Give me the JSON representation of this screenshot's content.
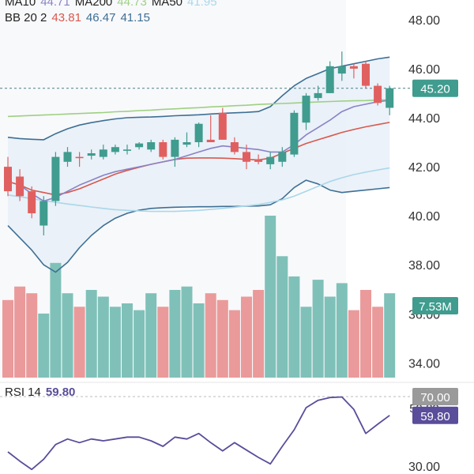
{
  "colors": {
    "up": "#3f9c8e",
    "down": "#e06060",
    "up_vol": "#7fc1b8",
    "down_vol": "#ea9a9a",
    "ma10": "#8a82c6",
    "ma200": "#9ed083",
    "ma50": "#a9d7ea",
    "bb_mid": "#d9584e",
    "bb_up": "#3e6f94",
    "bb_low": "#3e6f94",
    "rsi": "#5a4d9a",
    "price_tag": "#3f9c8e",
    "rsi_tag_70": "#9a9a9a",
    "rsi_tag": "#5a4d9a"
  },
  "legends": {
    "ma": {
      "ma10_label": "MA10",
      "ma10_value": "44.71",
      "ma200_label": "MA200",
      "ma200_value": "44.73",
      "ma50_label": "MA50",
      "ma50_value": "41.95"
    },
    "bb": {
      "label": "BB 20 2",
      "mid_value": "43.81",
      "upper_value": "46.47",
      "lower_value": "41.15"
    },
    "rsi": {
      "label": "RSI 14",
      "value": "59.80"
    }
  },
  "chart_data": [
    {
      "type": "candlestick",
      "title": "Price",
      "ylim": [
        33.4,
        48.8
      ],
      "y_ticks": [
        "48.00",
        "46.00",
        "44.00",
        "42.00",
        "40.00",
        "38.00",
        "36.00",
        "34.00"
      ],
      "y_tick_values": [
        48,
        46,
        44,
        42,
        40,
        38,
        36,
        34
      ],
      "last_price": 45.2,
      "last_price_label": "45.20",
      "volume_label": "7.53M",
      "candles": [
        {
          "o": 42.0,
          "h": 42.4,
          "l": 40.8,
          "c": 41.0
        },
        {
          "o": 41.6,
          "h": 41.9,
          "l": 40.6,
          "c": 40.8
        },
        {
          "o": 41.0,
          "h": 41.2,
          "l": 39.9,
          "c": 40.1
        },
        {
          "o": 39.6,
          "h": 40.8,
          "l": 39.2,
          "c": 40.6
        },
        {
          "o": 40.6,
          "h": 42.6,
          "l": 40.4,
          "c": 42.4
        },
        {
          "o": 42.2,
          "h": 42.8,
          "l": 42.0,
          "c": 42.6
        },
        {
          "o": 42.4,
          "h": 42.6,
          "l": 42.0,
          "c": 42.35
        },
        {
          "o": 42.45,
          "h": 42.7,
          "l": 42.3,
          "c": 42.55
        },
        {
          "o": 42.4,
          "h": 42.9,
          "l": 42.3,
          "c": 42.7
        },
        {
          "o": 42.6,
          "h": 42.9,
          "l": 42.5,
          "c": 42.8
        },
        {
          "o": 42.65,
          "h": 42.9,
          "l": 42.5,
          "c": 42.7
        },
        {
          "o": 42.8,
          "h": 43.0,
          "l": 42.7,
          "c": 42.95
        },
        {
          "o": 42.7,
          "h": 43.1,
          "l": 42.6,
          "c": 43.0
        },
        {
          "o": 43.0,
          "h": 43.1,
          "l": 42.3,
          "c": 42.4
        },
        {
          "o": 42.4,
          "h": 43.2,
          "l": 42.0,
          "c": 43.1
        },
        {
          "o": 42.9,
          "h": 43.4,
          "l": 42.8,
          "c": 43.0
        },
        {
          "o": 43.0,
          "h": 43.8,
          "l": 42.8,
          "c": 43.75
        },
        {
          "o": 43.1,
          "h": 44.1,
          "l": 43.0,
          "c": 43.0
        },
        {
          "o": 44.2,
          "h": 44.4,
          "l": 43.1,
          "c": 43.1
        },
        {
          "o": 43.0,
          "h": 43.2,
          "l": 42.5,
          "c": 42.6
        },
        {
          "o": 42.6,
          "h": 42.9,
          "l": 41.9,
          "c": 42.2
        },
        {
          "o": 42.3,
          "h": 42.5,
          "l": 42.1,
          "c": 42.2
        },
        {
          "o": 42.1,
          "h": 42.6,
          "l": 41.9,
          "c": 42.4
        },
        {
          "o": 42.2,
          "h": 42.8,
          "l": 42.0,
          "c": 42.6
        },
        {
          "o": 42.5,
          "h": 44.3,
          "l": 42.4,
          "c": 44.2
        },
        {
          "o": 43.8,
          "h": 45.0,
          "l": 43.5,
          "c": 44.9
        },
        {
          "o": 44.8,
          "h": 45.3,
          "l": 44.7,
          "c": 45.0
        },
        {
          "o": 45.0,
          "h": 46.3,
          "l": 45.0,
          "c": 46.1
        },
        {
          "o": 45.8,
          "h": 46.7,
          "l": 45.5,
          "c": 46.1
        },
        {
          "o": 46.1,
          "h": 46.2,
          "l": 45.6,
          "c": 46.0
        },
        {
          "o": 46.2,
          "h": 46.3,
          "l": 45.2,
          "c": 45.3
        },
        {
          "o": 45.3,
          "h": 45.4,
          "l": 44.5,
          "c": 44.6
        },
        {
          "o": 44.4,
          "h": 45.3,
          "l": 44.1,
          "c": 45.2
        }
      ],
      "volume": [
        23,
        27,
        25,
        19,
        34,
        25,
        21,
        26,
        24,
        21,
        22,
        20,
        25,
        21,
        26,
        27,
        22,
        25,
        23,
        20,
        24,
        26,
        48,
        36,
        30,
        21,
        29,
        24,
        28,
        20,
        26,
        21,
        25
      ],
      "volume_max": 48,
      "ma10": [
        null,
        41.25,
        40.9,
        40.6,
        40.75,
        41.0,
        41.25,
        41.45,
        41.65,
        41.8,
        41.9,
        42.0,
        42.1,
        42.2,
        42.3,
        42.45,
        42.6,
        42.75,
        42.85,
        42.8,
        42.75,
        42.7,
        42.6,
        42.6,
        42.9,
        43.3,
        43.6,
        43.9,
        44.25,
        44.45,
        44.55,
        44.65,
        44.71
      ],
      "ma200": [
        44.05,
        44.07,
        44.09,
        44.11,
        44.13,
        44.15,
        44.17,
        44.19,
        44.21,
        44.24,
        44.26,
        44.29,
        44.31,
        44.34,
        44.36,
        44.39,
        44.41,
        44.44,
        44.46,
        44.49,
        44.51,
        44.54,
        44.56,
        44.58,
        44.6,
        44.62,
        44.64,
        44.66,
        44.68,
        44.69,
        44.7,
        44.72,
        44.73
      ],
      "ma50": [
        40.85,
        40.78,
        40.7,
        40.62,
        40.55,
        40.48,
        40.42,
        40.36,
        40.3,
        40.25,
        40.22,
        40.2,
        40.18,
        40.18,
        40.18,
        40.2,
        40.22,
        40.26,
        40.3,
        40.35,
        40.4,
        40.46,
        40.55,
        40.65,
        40.8,
        41.0,
        41.2,
        41.4,
        41.55,
        41.68,
        41.78,
        41.87,
        41.95
      ],
      "bb_mid": [
        41.4,
        41.25,
        41.05,
        40.95,
        40.85,
        40.95,
        41.1,
        41.3,
        41.5,
        41.7,
        41.85,
        41.98,
        42.1,
        42.2,
        42.3,
        42.35,
        42.36,
        42.36,
        42.35,
        42.33,
        42.3,
        42.28,
        42.35,
        42.55,
        42.75,
        42.95,
        43.1,
        43.25,
        43.4,
        43.52,
        43.63,
        43.72,
        43.81
      ],
      "bb_upper": [
        43.2,
        43.15,
        43.12,
        43.1,
        43.35,
        43.55,
        43.7,
        43.8,
        43.88,
        43.95,
        44.0,
        44.02,
        44.03,
        44.05,
        44.08,
        44.1,
        44.12,
        44.15,
        44.18,
        44.2,
        44.22,
        44.25,
        44.45,
        44.9,
        45.3,
        45.6,
        45.8,
        46.0,
        46.1,
        46.2,
        46.3,
        46.4,
        46.47
      ],
      "bb_lower": [
        39.6,
        39.1,
        38.6,
        38.0,
        37.7,
        38.1,
        38.7,
        39.2,
        39.6,
        39.9,
        40.1,
        40.23,
        40.3,
        40.33,
        40.35,
        40.36,
        40.37,
        40.37,
        40.38,
        40.38,
        40.39,
        40.4,
        40.45,
        40.7,
        41.15,
        41.45,
        41.3,
        41.05,
        40.95,
        41.0,
        41.05,
        41.1,
        41.15
      ]
    },
    {
      "type": "line",
      "title": "RSI 14",
      "ylim": [
        28,
        76
      ],
      "y_ticks": [
        "30.00"
      ],
      "y_tick_values": [
        30
      ],
      "overbought": 70,
      "overbought_label": "70.00",
      "hidden_tick_label": "59.80",
      "value_label": "59.80",
      "values": [
        40,
        35,
        30.5,
        36,
        44,
        47,
        45,
        47,
        46,
        47,
        48,
        48,
        46,
        43,
        48,
        47,
        50,
        45,
        40.5,
        45,
        41,
        37,
        33.5,
        43,
        52,
        64,
        68,
        69.5,
        69.8,
        63,
        50,
        55,
        59.8
      ]
    }
  ]
}
